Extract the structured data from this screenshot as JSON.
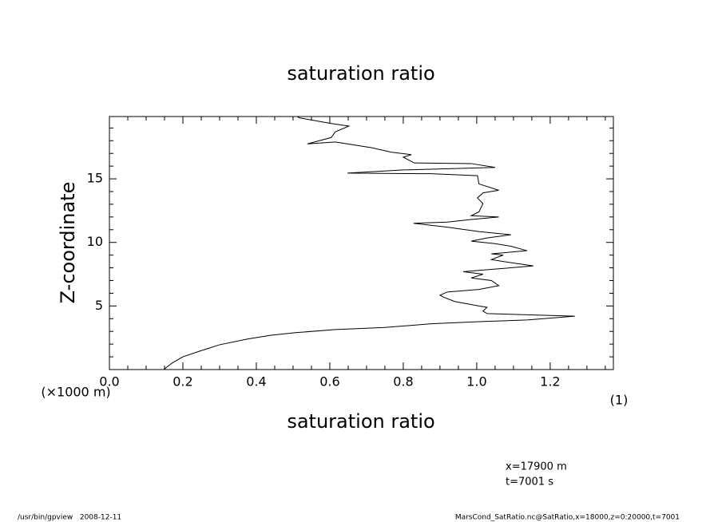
{
  "chart_data": {
    "type": "line",
    "title": "saturation ratio",
    "x_label": "saturation ratio",
    "x_unit": "(1)",
    "y_label": "Z-coordinate",
    "y_unit": "(×1000 m)",
    "annotations": [
      "x=17900 m",
      "t=7001 s"
    ],
    "footer_left": "/usr/bin/gpview   2008-12-11",
    "footer_right": "MarsCond_SatRatio.nc@SatRatio,x=18000,z=0:20000,t=7001",
    "color": "#000000",
    "xlim": [
      0,
      1.372
    ],
    "ylim": [
      0,
      19.9
    ],
    "xticks": [
      {
        "value": 0,
        "label": "0.0"
      },
      0.2,
      0.4,
      0.6,
      0.8,
      {
        "value": 1,
        "label": "1.0"
      },
      1.2
    ],
    "yticks": [
      5,
      10,
      15
    ],
    "xminorticks": [
      0.05,
      0.1,
      0.15,
      0.25,
      0.3,
      0.35,
      0.45,
      0.5,
      0.55,
      0.65,
      0.7,
      0.75,
      0.85,
      0.9,
      0.95,
      1.05,
      1.1,
      1.15,
      1.25,
      1.3,
      1.35
    ],
    "yminorticks": [
      1,
      2,
      3,
      4,
      6,
      7,
      8,
      9,
      11,
      12,
      13,
      14,
      16,
      17,
      18,
      19
    ],
    "z": [
      0,
      0.5,
      1.0,
      1.45,
      1.95,
      2.4,
      2.7,
      2.9,
      3.15,
      3.3,
      3.6,
      3.77,
      3.9,
      4.2,
      4.4,
      4.6,
      4.9,
      5.0,
      5.35,
      5.7,
      5.85,
      6.1,
      6.3,
      6.6,
      7.0,
      7.2,
      7.5,
      7.7,
      7.9,
      8.15,
      8.5,
      8.65,
      9.0,
      9.1,
      9.35,
      9.7,
      9.9,
      10.1,
      10.35,
      10.6,
      10.85,
      11.2,
      11.5,
      11.6,
      11.8,
      12.0,
      12.1,
      12.4,
      13.05,
      13.5,
      13.9,
      14.1,
      14.6,
      15.25,
      15.4,
      15.45,
      15.7,
      15.9,
      16.2,
      16.25,
      16.7,
      16.9,
      17.1,
      17.45,
      17.6,
      17.9,
      17.75,
      18.25,
      18.7,
      19.15,
      19.35,
      19.8,
      19.9
    ],
    "values": [
      0.148,
      0.17,
      0.2,
      0.246,
      0.3,
      0.376,
      0.44,
      0.507,
      0.615,
      0.746,
      0.876,
      1.006,
      1.137,
      1.267,
      1.028,
      1.017,
      1.028,
      1.006,
      0.94,
      0.909,
      0.9,
      0.92,
      1.006,
      1.06,
      1.04,
      0.985,
      1.017,
      0.963,
      1.05,
      1.154,
      1.072,
      1.04,
      1.072,
      1.04,
      1.137,
      1.093,
      1.05,
      0.985,
      1.028,
      1.093,
      1.006,
      0.92,
      0.828,
      0.92,
      0.985,
      1.06,
      0.985,
      1.006,
      1.017,
      1.002,
      1.017,
      1.06,
      1.006,
      1.002,
      0.876,
      0.648,
      0.8,
      1.05,
      0.985,
      0.83,
      0.8,
      0.822,
      0.767,
      0.713,
      0.68,
      0.615,
      0.539,
      0.604,
      0.615,
      0.652,
      0.604,
      0.517,
      0.511
    ]
  }
}
